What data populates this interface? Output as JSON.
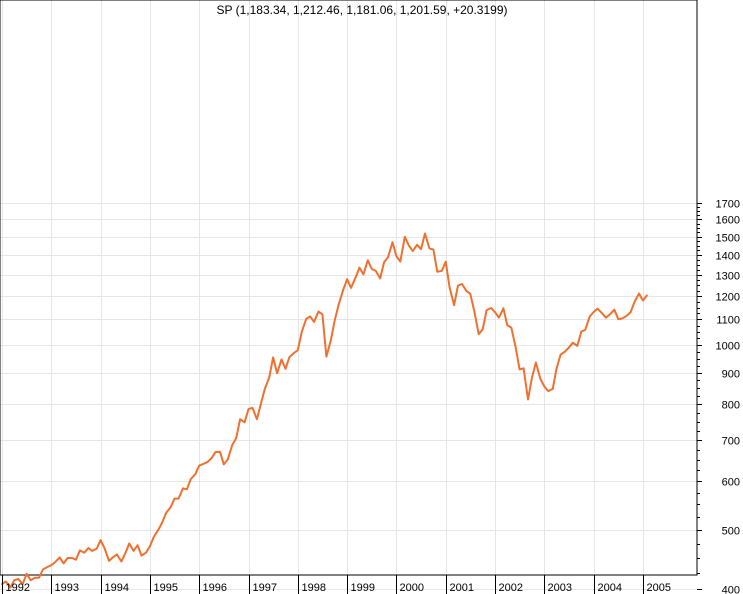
{
  "chart_data": {
    "type": "line",
    "title": "SP (1,183.34, 1,212.46, 1,181.06, 1,201.59, +20.3199)",
    "xlabel": "",
    "ylabel": "",
    "y_scale": "log",
    "ylim": [
      360,
      1780
    ],
    "xlim": [
      1992.0,
      2005.2
    ],
    "grid": true,
    "y_ticks": [
      400,
      500,
      600,
      700,
      800,
      900,
      1000,
      1100,
      1200,
      1300,
      1400,
      1500,
      1600,
      1700
    ],
    "x_ticks": [
      1992,
      1993,
      1994,
      1995,
      1996,
      1997,
      1998,
      1999,
      2000,
      2001,
      2002,
      2003,
      2004,
      2005
    ],
    "series": [
      {
        "color": "#f07030",
        "points": [
          [
            1992.0,
            408
          ],
          [
            1992.08,
            412
          ],
          [
            1992.17,
            403
          ],
          [
            1992.25,
            414
          ],
          [
            1992.33,
            416
          ],
          [
            1992.42,
            408
          ],
          [
            1992.5,
            424
          ],
          [
            1992.58,
            414
          ],
          [
            1992.67,
            418
          ],
          [
            1992.75,
            418
          ],
          [
            1992.83,
            431
          ],
          [
            1992.92,
            435
          ],
          [
            1993.0,
            438
          ],
          [
            1993.08,
            443
          ],
          [
            1993.17,
            451
          ],
          [
            1993.25,
            441
          ],
          [
            1993.33,
            450
          ],
          [
            1993.42,
            450
          ],
          [
            1993.5,
            447
          ],
          [
            1993.58,
            463
          ],
          [
            1993.67,
            459
          ],
          [
            1993.75,
            467
          ],
          [
            1993.83,
            462
          ],
          [
            1993.92,
            466
          ],
          [
            1994.0,
            481
          ],
          [
            1994.08,
            467
          ],
          [
            1994.17,
            445
          ],
          [
            1994.25,
            451
          ],
          [
            1994.33,
            456
          ],
          [
            1994.42,
            444
          ],
          [
            1994.5,
            458
          ],
          [
            1994.58,
            475
          ],
          [
            1994.67,
            462
          ],
          [
            1994.75,
            472
          ],
          [
            1994.83,
            454
          ],
          [
            1994.92,
            459
          ],
          [
            1995.0,
            470
          ],
          [
            1995.08,
            487
          ],
          [
            1995.17,
            500
          ],
          [
            1995.25,
            514
          ],
          [
            1995.33,
            533
          ],
          [
            1995.42,
            544
          ],
          [
            1995.5,
            562
          ],
          [
            1995.58,
            562
          ],
          [
            1995.67,
            584
          ],
          [
            1995.75,
            582
          ],
          [
            1995.83,
            605
          ],
          [
            1995.92,
            616
          ],
          [
            1996.0,
            636
          ],
          [
            1996.08,
            640
          ],
          [
            1996.17,
            645
          ],
          [
            1996.25,
            654
          ],
          [
            1996.33,
            669
          ],
          [
            1996.42,
            670
          ],
          [
            1996.5,
            639
          ],
          [
            1996.58,
            651
          ],
          [
            1996.67,
            687
          ],
          [
            1996.75,
            705
          ],
          [
            1996.83,
            757
          ],
          [
            1996.92,
            748
          ],
          [
            1997.0,
            786
          ],
          [
            1997.08,
            790
          ],
          [
            1997.17,
            757
          ],
          [
            1997.25,
            801
          ],
          [
            1997.33,
            848
          ],
          [
            1997.42,
            885
          ],
          [
            1997.5,
            954
          ],
          [
            1997.58,
            899
          ],
          [
            1997.67,
            947
          ],
          [
            1997.75,
            914
          ],
          [
            1997.83,
            955
          ],
          [
            1997.92,
            970
          ],
          [
            1998.0,
            980
          ],
          [
            1998.08,
            1049
          ],
          [
            1998.17,
            1102
          ],
          [
            1998.25,
            1112
          ],
          [
            1998.33,
            1090
          ],
          [
            1998.42,
            1133
          ],
          [
            1998.5,
            1121
          ],
          [
            1998.58,
            957
          ],
          [
            1998.67,
            1017
          ],
          [
            1998.75,
            1098
          ],
          [
            1998.83,
            1163
          ],
          [
            1998.92,
            1229
          ],
          [
            1999.0,
            1279
          ],
          [
            1999.08,
            1238
          ],
          [
            1999.17,
            1286
          ],
          [
            1999.25,
            1335
          ],
          [
            1999.33,
            1302
          ],
          [
            1999.42,
            1373
          ],
          [
            1999.5,
            1329
          ],
          [
            1999.58,
            1320
          ],
          [
            1999.67,
            1283
          ],
          [
            1999.75,
            1363
          ],
          [
            1999.83,
            1389
          ],
          [
            1999.92,
            1469
          ],
          [
            2000.0,
            1394
          ],
          [
            2000.08,
            1366
          ],
          [
            2000.17,
            1499
          ],
          [
            2000.25,
            1452
          ],
          [
            2000.33,
            1421
          ],
          [
            2000.42,
            1455
          ],
          [
            2000.5,
            1431
          ],
          [
            2000.58,
            1518
          ],
          [
            2000.67,
            1436
          ],
          [
            2000.75,
            1429
          ],
          [
            2000.83,
            1315
          ],
          [
            2000.92,
            1320
          ],
          [
            2001.0,
            1366
          ],
          [
            2001.08,
            1240
          ],
          [
            2001.17,
            1160
          ],
          [
            2001.25,
            1249
          ],
          [
            2001.33,
            1256
          ],
          [
            2001.42,
            1224
          ],
          [
            2001.5,
            1211
          ],
          [
            2001.58,
            1134
          ],
          [
            2001.67,
            1041
          ],
          [
            2001.75,
            1060
          ],
          [
            2001.83,
            1139
          ],
          [
            2001.92,
            1148
          ],
          [
            2002.0,
            1130
          ],
          [
            2002.08,
            1107
          ],
          [
            2002.17,
            1147
          ],
          [
            2002.25,
            1076
          ],
          [
            2002.33,
            1067
          ],
          [
            2002.42,
            990
          ],
          [
            2002.5,
            912
          ],
          [
            2002.58,
            916
          ],
          [
            2002.67,
            815
          ],
          [
            2002.75,
            885
          ],
          [
            2002.83,
            936
          ],
          [
            2002.92,
            880
          ],
          [
            2003.0,
            856
          ],
          [
            2003.08,
            841
          ],
          [
            2003.17,
            848
          ],
          [
            2003.25,
            916
          ],
          [
            2003.33,
            964
          ],
          [
            2003.42,
            975
          ],
          [
            2003.5,
            990
          ],
          [
            2003.58,
            1008
          ],
          [
            2003.67,
            996
          ],
          [
            2003.75,
            1051
          ],
          [
            2003.83,
            1058
          ],
          [
            2003.92,
            1112
          ],
          [
            2004.0,
            1131
          ],
          [
            2004.08,
            1145
          ],
          [
            2004.17,
            1126
          ],
          [
            2004.25,
            1107
          ],
          [
            2004.33,
            1121
          ],
          [
            2004.42,
            1141
          ],
          [
            2004.5,
            1101
          ],
          [
            2004.58,
            1104
          ],
          [
            2004.67,
            1115
          ],
          [
            2004.75,
            1130
          ],
          [
            2004.83,
            1174
          ],
          [
            2004.92,
            1212
          ],
          [
            2005.0,
            1181
          ],
          [
            2005.08,
            1203
          ]
        ]
      }
    ]
  }
}
